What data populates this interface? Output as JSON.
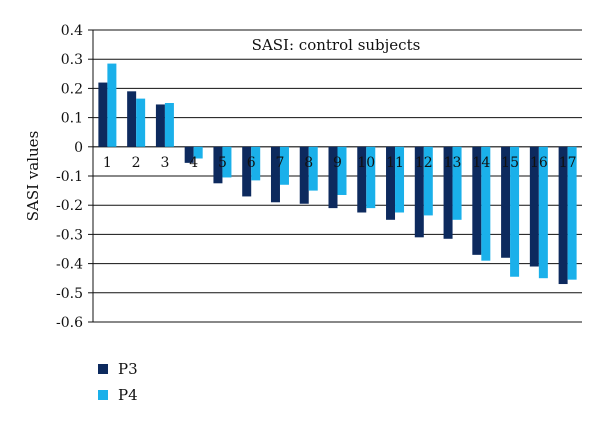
{
  "chart_data": {
    "type": "bar",
    "title": "SASI: control subjects",
    "xlabel": "",
    "ylabel": "SASI values",
    "ylim": [
      -0.6,
      0.4
    ],
    "yticks": [
      "0.4",
      "0.3",
      "0.2",
      "0.1",
      "0",
      "-0.1",
      "-0.2",
      "-0.3",
      "-0.4",
      "-0.5",
      "-0.6"
    ],
    "ytick_values": [
      0.4,
      0.3,
      0.2,
      0.1,
      0,
      -0.1,
      -0.2,
      -0.3,
      -0.4,
      -0.5,
      -0.6
    ],
    "categories": [
      "1",
      "2",
      "3",
      "4",
      "5",
      "6",
      "7",
      "8",
      "9",
      "10",
      "11",
      "12",
      "13",
      "14",
      "15",
      "16",
      "17"
    ],
    "grid": "horizontal",
    "legend_position": "bottom-left",
    "series": [
      {
        "name": "P3",
        "color": "#0d2a5e",
        "values": [
          0.22,
          0.19,
          0.145,
          -0.055,
          -0.125,
          -0.17,
          -0.19,
          -0.195,
          -0.21,
          -0.225,
          -0.25,
          -0.31,
          -0.315,
          -0.37,
          -0.38,
          -0.41,
          -0.47
        ]
      },
      {
        "name": "P4",
        "color": "#1ab0ea",
        "values": [
          0.285,
          0.165,
          0.15,
          -0.04,
          -0.105,
          -0.115,
          -0.13,
          -0.15,
          -0.165,
          -0.21,
          -0.225,
          -0.235,
          -0.25,
          -0.39,
          -0.445,
          -0.45,
          -0.455
        ]
      }
    ]
  }
}
